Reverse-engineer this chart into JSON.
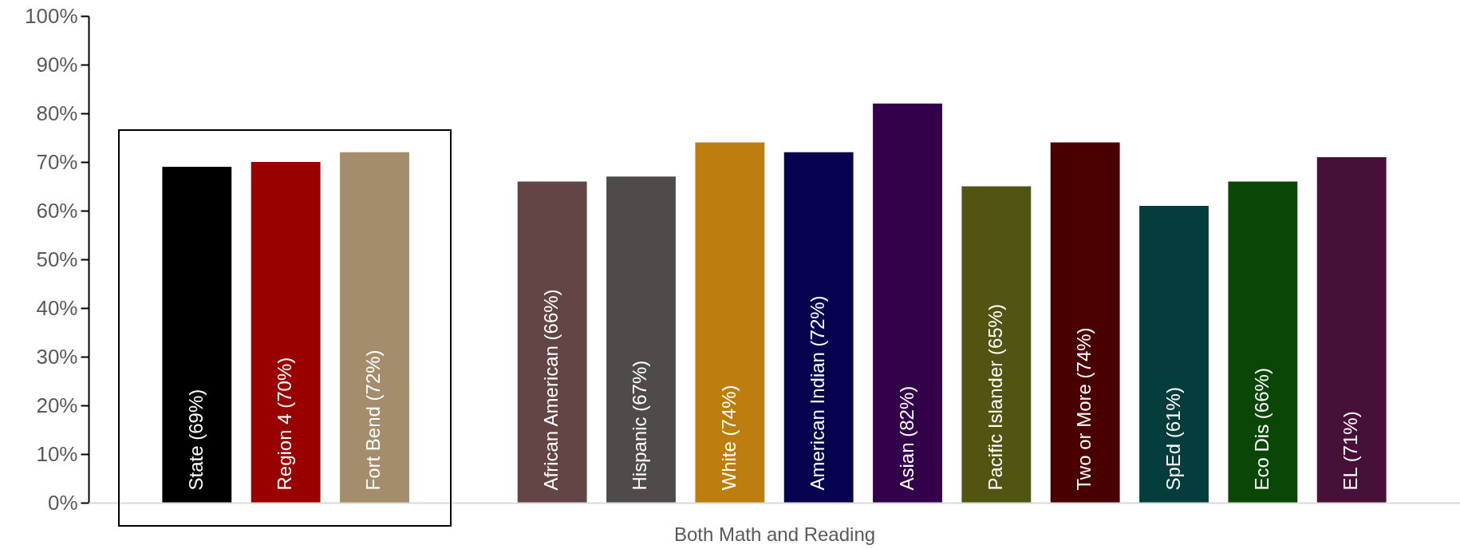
{
  "chart_data": {
    "type": "bar",
    "xlabel": "Both Math and Reading",
    "categories": [
      "State (69%)",
      "Region 4 (70%)",
      "Fort Bend (72%)",
      null,
      "African American (66%)",
      "Hispanic (67%)",
      "White (74%)",
      "American Indian (72%)",
      "Asian (82%)",
      "Pacific Islander (65%)",
      "Two or More (74%)",
      "SpEd (61%)",
      "Eco Dis (66%)",
      "EL (71%)"
    ],
    "values": [
      69,
      70,
      72,
      null,
      66,
      67,
      74,
      72,
      82,
      65,
      74,
      61,
      66,
      71
    ],
    "colors": [
      "#000000",
      "#990000",
      "#a38d6c",
      null,
      "#634545",
      "#4f4b4a",
      "#bd7e0f",
      "#07034f",
      "#33004a",
      "#525412",
      "#4a0000",
      "#053d3d",
      "#0a4707",
      "#471038"
    ],
    "ylim": [
      0,
      100
    ],
    "yticks": [
      {
        "value": 0,
        "label": "0%"
      },
      {
        "value": 10,
        "label": "10%"
      },
      {
        "value": 20,
        "label": "20%"
      },
      {
        "value": 30,
        "label": "30%"
      },
      {
        "value": 40,
        "label": "40%"
      },
      {
        "value": 50,
        "label": "50%"
      },
      {
        "value": 60,
        "label": "60%"
      },
      {
        "value": 70,
        "label": "70%"
      },
      {
        "value": 80,
        "label": "80%"
      },
      {
        "value": 90,
        "label": "90%"
      },
      {
        "value": 100,
        "label": "100%"
      }
    ]
  }
}
